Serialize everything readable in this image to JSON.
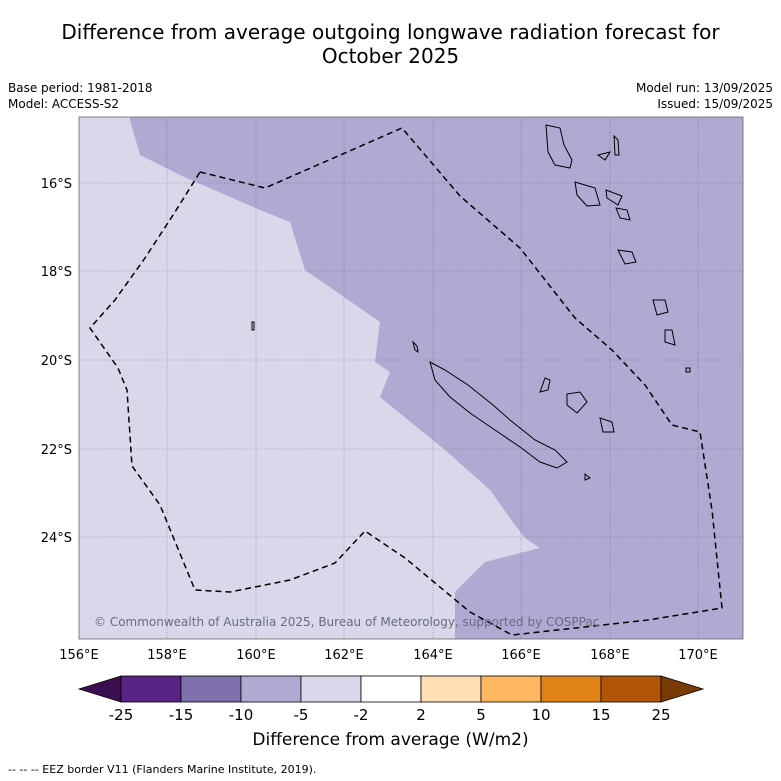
{
  "title_line1": "Difference from average outgoing longwave radiation forecast for",
  "title_line2": "October 2025",
  "meta": {
    "base_period": "Base period: 1981-2018",
    "model": "Model: ACCESS-S2",
    "model_run": "Model run: 13/09/2025",
    "issued": "Issued: 15/09/2025"
  },
  "map": {
    "lon_range": [
      156,
      171
    ],
    "lat_range": [
      -14.5,
      -26.3
    ],
    "lon_ticks": [
      "156°E",
      "158°E",
      "160°E",
      "162°E",
      "164°E",
      "166°E",
      "168°E",
      "170°E"
    ],
    "lat_ticks": [
      "16°S",
      "18°S",
      "20°S",
      "22°S",
      "24°S"
    ],
    "copyright": "© Commonwealth of Australia 2025, Bureau of Meteorology, supported by COSPPac",
    "colors": {
      "field_light": "#d8d8ea",
      "field_mid": "#b0a9d2"
    }
  },
  "colorbar": {
    "labels": [
      "-25",
      "-15",
      "-10",
      "-5",
      "-2",
      "2",
      "5",
      "10",
      "15",
      "25"
    ],
    "colors": [
      "#3b0f4f",
      "#572486",
      "#7f71ac",
      "#b0a9d2",
      "#d8d8ea",
      "#ffffff",
      "#ffdfb3",
      "#fdb761",
      "#e08217",
      "#b25507",
      "#7a3a06"
    ],
    "title": "Difference from average (W/m2)"
  },
  "footnote": "--  --  -- EEZ border V11 (Flanders Marine Institute, 2019)."
}
